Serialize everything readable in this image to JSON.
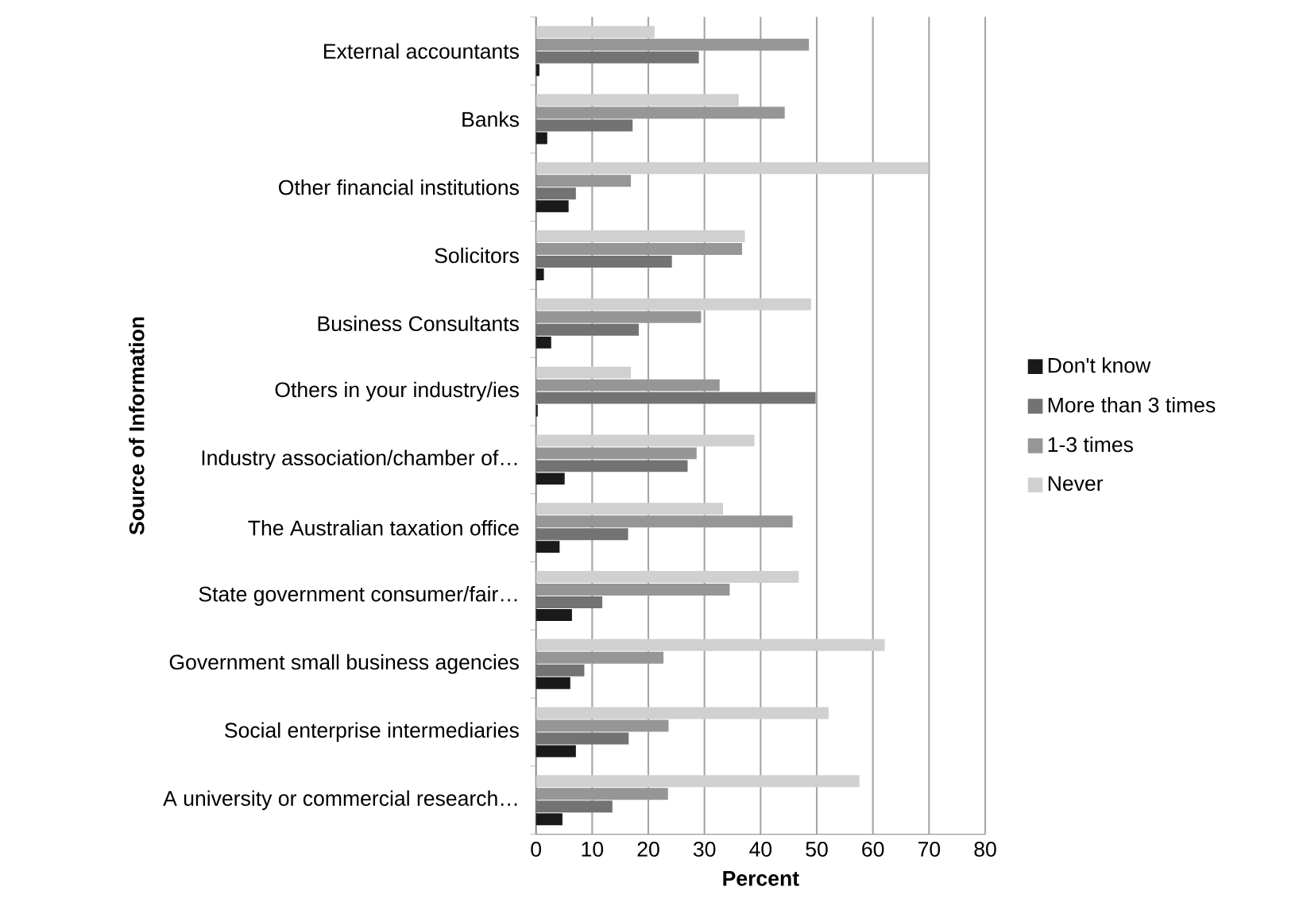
{
  "chart_data": {
    "type": "bar",
    "orientation": "horizontal",
    "xlabel": "Percent",
    "ylabel": "Source of Information",
    "categories": [
      "External accountants",
      "Banks",
      "Other financial institutions",
      "Solicitors",
      "Business Consultants",
      "Others in your industry/ies",
      "Industry association/chamber of…",
      "The Australian taxation office",
      "State government consumer/fair…",
      "Government small business agencies",
      "Social enterprise intermediaries",
      "A university or commercial research…"
    ],
    "series": [
      {
        "name": "Don't know",
        "color": "#1a1a1a",
        "values": [
          0.6,
          2,
          5.8,
          1.4,
          2.7,
          0.3,
          5.1,
          4.2,
          6.4,
          6.1,
          7.1,
          4.7
        ]
      },
      {
        "name": "More than 3 times",
        "color": "#737373",
        "values": [
          29,
          17.2,
          7.1,
          24.2,
          18.3,
          49.8,
          27,
          16.4,
          11.8,
          8.6,
          16.5,
          13.6
        ]
      },
      {
        "name": "1-3 times",
        "color": "#969696",
        "values": [
          48.6,
          44.3,
          16.9,
          36.7,
          29.4,
          32.7,
          28.6,
          45.7,
          34.5,
          22.7,
          23.6,
          23.5
        ]
      },
      {
        "name": "Never",
        "color": "#d0d0d0",
        "values": [
          21.1,
          36.1,
          69.9,
          37.2,
          49,
          16.9,
          38.9,
          33.3,
          46.8,
          62.1,
          52.1,
          57.6
        ]
      }
    ],
    "xlim": [
      0,
      80
    ],
    "xticks": [
      0,
      10,
      20,
      30,
      40,
      50,
      60,
      70,
      80
    ],
    "grid": "x",
    "legend": "right"
  }
}
